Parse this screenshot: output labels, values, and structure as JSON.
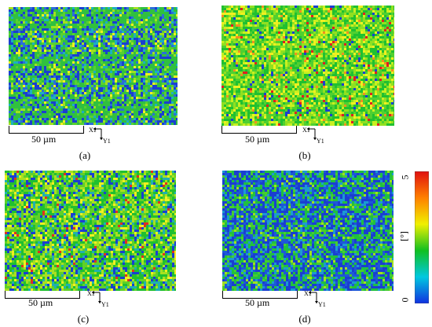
{
  "figure": {
    "panels": [
      {
        "id": "a",
        "caption": "(a)",
        "scale_label": "50 µm",
        "axis_x_label": "X1",
        "axis_y_label": "Y1",
        "texture": "streaks-blue-green"
      },
      {
        "id": "b",
        "caption": "(b)",
        "scale_label": "50 µm",
        "axis_x_label": "X1",
        "axis_y_label": "Y1",
        "texture": "speckle-green-yellow"
      },
      {
        "id": "c",
        "caption": "(c)",
        "scale_label": "50 µm",
        "axis_x_label": "X1",
        "axis_y_label": "Y1",
        "texture": "diagonal-green"
      },
      {
        "id": "d",
        "caption": "(d)",
        "scale_label": "50 µm",
        "axis_x_label": "X1",
        "axis_y_label": "Y1",
        "texture": "blue-green-mottled"
      }
    ],
    "colorbar": {
      "min_label": "0",
      "max_label": "5",
      "unit_label": "[°]",
      "colors": [
        "#1030e0",
        "#00c8e0",
        "#10c020",
        "#f0f000",
        "#ff8000",
        "#e01010"
      ]
    }
  }
}
